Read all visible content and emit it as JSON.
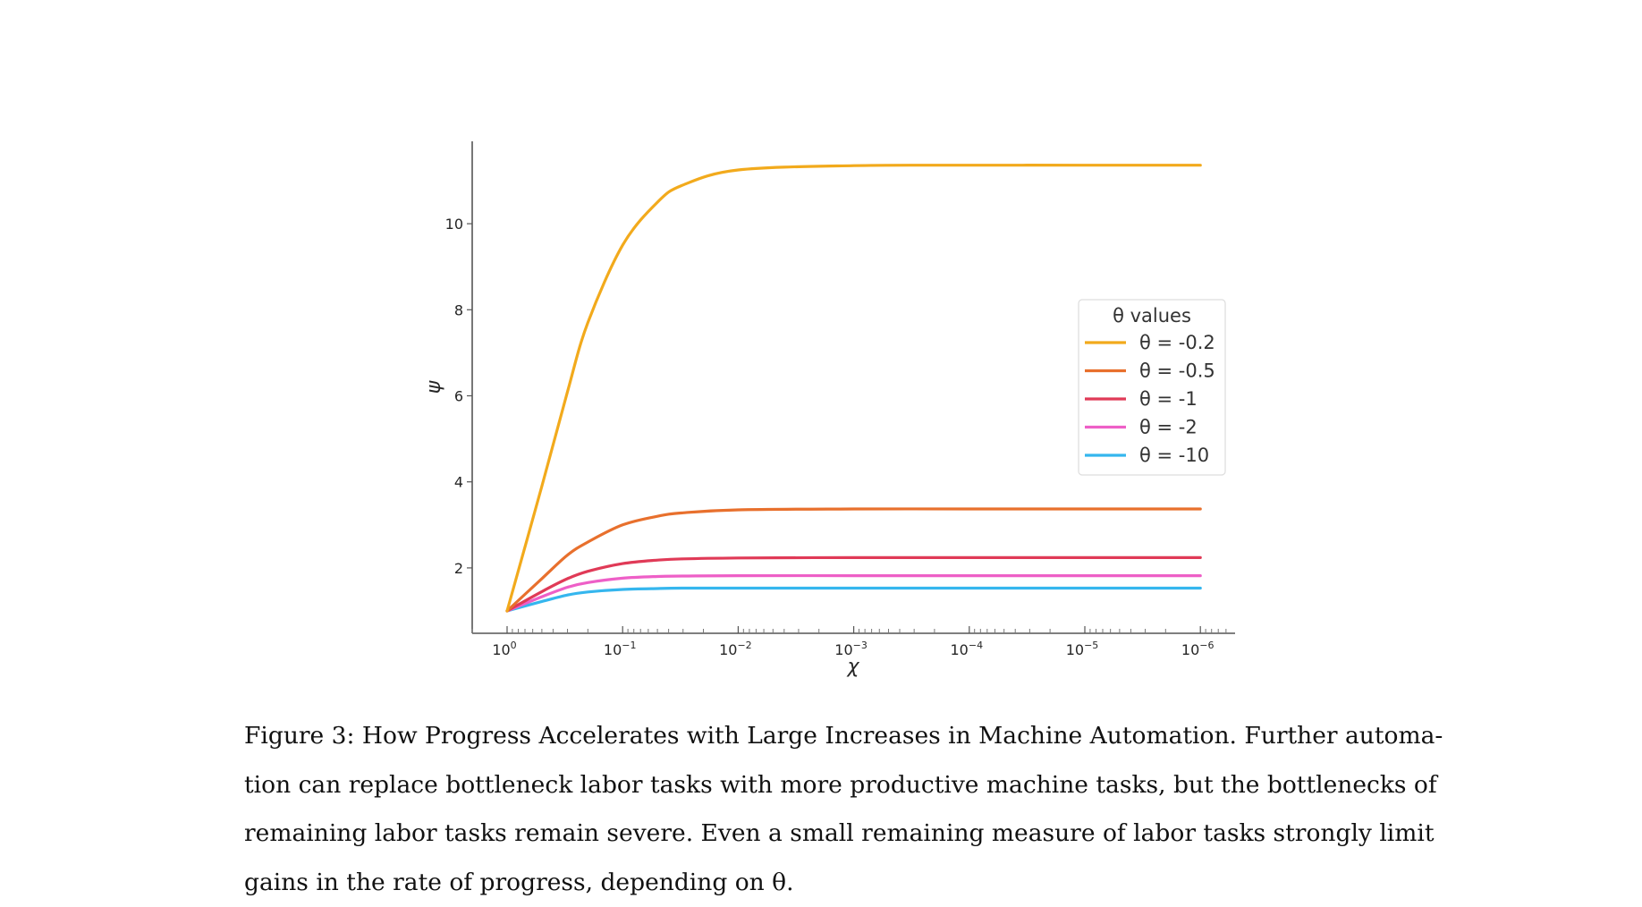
{
  "chart_data": {
    "type": "line",
    "title": "",
    "xlabel": "χ",
    "ylabel": "ψ",
    "x_scale": "log (reversed)",
    "x_ticks": [
      "10^0",
      "10^-1",
      "10^-2",
      "10^-3",
      "10^-4",
      "10^-5",
      "10^-6"
    ],
    "x_tick_values": [
      1,
      0.1,
      0.01,
      0.001,
      0.0001,
      1e-05,
      1e-06
    ],
    "y_ticks": [
      2,
      4,
      6,
      8,
      10
    ],
    "xlim": [
      1.4,
      7e-07
    ],
    "ylim": [
      0.5,
      11.9
    ],
    "grid": false,
    "legend_title": "θ values",
    "legend_position": "center right",
    "x": [
      1,
      0.5,
      0.3,
      0.2,
      0.1,
      0.05,
      0.03,
      0.01,
      0.001,
      0.0001,
      1e-05,
      1e-06
    ],
    "series": [
      {
        "name": "θ = -0.2",
        "color": "#f2aa1c",
        "values": [
          1.0,
          3.9,
          6.1,
          7.7,
          9.5,
          10.5,
          10.9,
          11.25,
          11.35,
          11.36,
          11.36,
          11.36
        ]
      },
      {
        "name": "θ = -0.5",
        "color": "#e8702d",
        "values": [
          1.0,
          1.75,
          2.3,
          2.6,
          3.0,
          3.2,
          3.28,
          3.35,
          3.37,
          3.37,
          3.37,
          3.37
        ]
      },
      {
        "name": "θ = -1",
        "color": "#e03a57",
        "values": [
          1.0,
          1.45,
          1.75,
          1.92,
          2.1,
          2.18,
          2.21,
          2.23,
          2.24,
          2.24,
          2.24,
          2.24
        ]
      },
      {
        "name": "θ = -2",
        "color": "#ee5fc7",
        "values": [
          1.0,
          1.33,
          1.55,
          1.66,
          1.76,
          1.8,
          1.81,
          1.82,
          1.82,
          1.82,
          1.82,
          1.82
        ]
      },
      {
        "name": "θ = -10",
        "color": "#35b6ee",
        "values": [
          1.0,
          1.22,
          1.37,
          1.44,
          1.5,
          1.52,
          1.53,
          1.53,
          1.53,
          1.53,
          1.53,
          1.53
        ]
      }
    ]
  },
  "legend": {
    "title": "θ values",
    "items": [
      {
        "label": "θ = -0.2",
        "color": "#f2aa1c"
      },
      {
        "label": "θ = -0.5",
        "color": "#e8702d"
      },
      {
        "label": "θ = -1",
        "color": "#e03a57"
      },
      {
        "label": "θ = -2",
        "color": "#ee5fc7"
      },
      {
        "label": "θ = -10",
        "color": "#35b6ee"
      }
    ]
  },
  "axes": {
    "xlabel": "χ",
    "ylabel": "ψ",
    "y_tick_labels": [
      "2",
      "4",
      "6",
      "8",
      "10"
    ],
    "x_tick_bases": [
      "10",
      "10",
      "10",
      "10",
      "10",
      "10",
      "10"
    ],
    "x_tick_exponents": [
      "0",
      "−1",
      "−2",
      "−3",
      "−4",
      "−5",
      "−6"
    ]
  },
  "caption": {
    "lines": [
      "Figure 3: How Progress Accelerates with Large Increases in Machine Automation. Further automa-",
      "tion can replace bottleneck labor tasks with more productive machine tasks, but the bottlenecks of",
      "remaining labor tasks remain severe. Even a small remaining measure of labor tasks strongly limit",
      "gains in the rate of progress, depending on θ."
    ]
  }
}
